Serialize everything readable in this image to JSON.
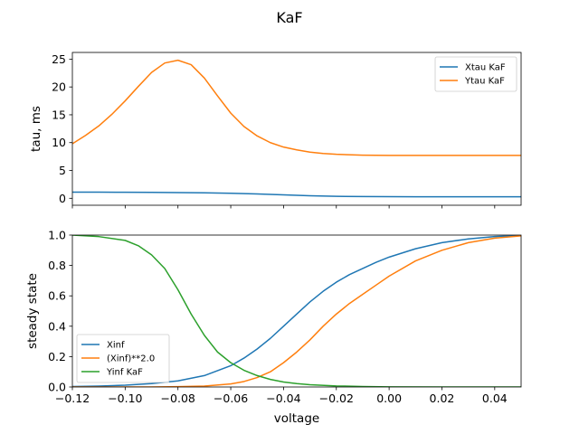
{
  "chart_data": {
    "title": "KaF",
    "xlabel": "voltage",
    "xlim": [
      -0.12,
      0.05
    ],
    "x_ticks": [
      -0.12,
      -0.1,
      -0.08,
      -0.06,
      -0.04,
      -0.02,
      0.0,
      0.02,
      0.04
    ],
    "x_tick_labels": [
      "−0.12",
      "−0.10",
      "−0.08",
      "−0.06",
      "−0.04",
      "−0.02",
      "0.00",
      "0.02",
      "0.04"
    ],
    "panels": [
      {
        "type": "line",
        "ylabel": "tau, ms",
        "ylim": [
          -1.25,
          26.2
        ],
        "y_ticks": [
          0,
          5,
          10,
          15,
          20,
          25
        ],
        "y_tick_labels": [
          "0",
          "5",
          "10",
          "15",
          "20",
          "25"
        ],
        "show_x_tick_labels": false,
        "legend_position": "top-right",
        "series": [
          {
            "name": "Xtau KaF",
            "color": "#1f77b4",
            "x": [
              -0.12,
              -0.11,
              -0.1,
              -0.09,
              -0.08,
              -0.07,
              -0.06,
              -0.05,
              -0.04,
              -0.03,
              -0.02,
              -0.01,
              0.0,
              0.01,
              0.02,
              0.03,
              0.04,
              0.05
            ],
            "y": [
              1.1,
              1.1,
              1.08,
              1.06,
              1.03,
              0.98,
              0.9,
              0.78,
              0.62,
              0.46,
              0.36,
              0.31,
              0.29,
              0.28,
              0.28,
              0.28,
              0.28,
              0.28
            ]
          },
          {
            "name": "Ytau KaF",
            "color": "#ff7f0e",
            "x": [
              -0.12,
              -0.115,
              -0.11,
              -0.105,
              -0.1,
              -0.095,
              -0.09,
              -0.085,
              -0.08,
              -0.075,
              -0.07,
              -0.065,
              -0.06,
              -0.055,
              -0.05,
              -0.045,
              -0.04,
              -0.035,
              -0.03,
              -0.025,
              -0.02,
              -0.01,
              0.0,
              0.01,
              0.02,
              0.03,
              0.04,
              0.05
            ],
            "y": [
              9.8,
              11.3,
              13.0,
              15.1,
              17.5,
              20.1,
              22.6,
              24.3,
              24.8,
              24.0,
              21.6,
              18.4,
              15.3,
              12.9,
              11.2,
              10.0,
              9.2,
              8.7,
              8.3,
              8.05,
              7.9,
              7.75,
              7.7,
              7.7,
              7.7,
              7.7,
              7.7,
              7.7
            ]
          }
        ]
      },
      {
        "type": "line",
        "ylabel": "steady state",
        "ylim": [
          0.0,
          1.0
        ],
        "y_ticks": [
          0.0,
          0.2,
          0.4,
          0.6,
          0.8,
          1.0
        ],
        "y_tick_labels": [
          "0.0",
          "0.2",
          "0.4",
          "0.6",
          "0.8",
          "1.0"
        ],
        "show_x_tick_labels": true,
        "legend_position": "lower-left",
        "series": [
          {
            "name": "Xinf",
            "color": "#1f77b4",
            "x": [
              -0.12,
              -0.11,
              -0.1,
              -0.09,
              -0.08,
              -0.07,
              -0.06,
              -0.055,
              -0.05,
              -0.045,
              -0.04,
              -0.035,
              -0.03,
              -0.025,
              -0.02,
              -0.015,
              -0.01,
              -0.005,
              0.0,
              0.01,
              0.02,
              0.03,
              0.04,
              0.05
            ],
            "y": [
              0.003,
              0.006,
              0.012,
              0.022,
              0.04,
              0.075,
              0.14,
              0.19,
              0.25,
              0.32,
              0.4,
              0.48,
              0.56,
              0.63,
              0.69,
              0.74,
              0.78,
              0.82,
              0.855,
              0.91,
              0.95,
              0.975,
              0.99,
              0.997
            ]
          },
          {
            "name": "(Xinf)**2.0",
            "color": "#ff7f0e",
            "x": [
              -0.12,
              -0.11,
              -0.1,
              -0.09,
              -0.08,
              -0.07,
              -0.06,
              -0.055,
              -0.05,
              -0.045,
              -0.04,
              -0.035,
              -0.03,
              -0.025,
              -0.02,
              -0.015,
              -0.01,
              -0.005,
              0.0,
              0.01,
              0.02,
              0.03,
              0.04,
              0.05
            ],
            "y": [
              0.0,
              0.0,
              0.0,
              0.0,
              0.002,
              0.006,
              0.02,
              0.036,
              0.062,
              0.1,
              0.16,
              0.23,
              0.31,
              0.4,
              0.48,
              0.55,
              0.61,
              0.67,
              0.73,
              0.83,
              0.9,
              0.95,
              0.98,
              0.995
            ]
          },
          {
            "name": "Yinf KaF",
            "color": "#2ca02c",
            "x": [
              -0.12,
              -0.11,
              -0.1,
              -0.095,
              -0.09,
              -0.085,
              -0.08,
              -0.075,
              -0.07,
              -0.065,
              -0.06,
              -0.055,
              -0.05,
              -0.045,
              -0.04,
              -0.035,
              -0.03,
              -0.02,
              -0.01,
              0.0,
              0.02,
              0.05
            ],
            "y": [
              1.0,
              0.99,
              0.965,
              0.93,
              0.87,
              0.78,
              0.64,
              0.48,
              0.34,
              0.23,
              0.16,
              0.11,
              0.075,
              0.05,
              0.033,
              0.022,
              0.015,
              0.007,
              0.003,
              0.001,
              0.0,
              0.0
            ]
          }
        ]
      }
    ]
  }
}
